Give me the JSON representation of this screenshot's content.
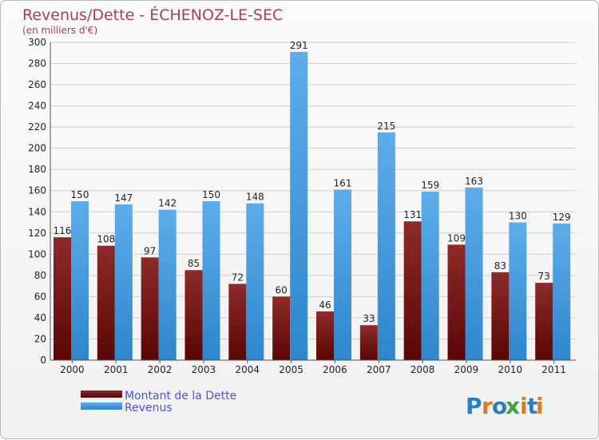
{
  "chart_data": {
    "type": "bar",
    "title": "Revenus/Dette - ÉCHENOZ-LE-SEC",
    "subtitle": "(en milliers d'€)",
    "categories": [
      "2000",
      "2001",
      "2002",
      "2003",
      "2004",
      "2005",
      "2006",
      "2007",
      "2008",
      "2009",
      "2010",
      "2011"
    ],
    "series": [
      {
        "name": "Montant de la Dette",
        "color": "#7a1010",
        "values": [
          116,
          108,
          97,
          85,
          72,
          60,
          46,
          33,
          131,
          109,
          83,
          73
        ]
      },
      {
        "name": "Revenus",
        "color": "#4fa0df",
        "values": [
          150,
          147,
          142,
          150,
          148,
          291,
          161,
          215,
          159,
          163,
          130,
          129
        ]
      }
    ],
    "ylim": [
      0,
      300
    ],
    "yticks": [
      0,
      20,
      40,
      60,
      80,
      100,
      120,
      140,
      160,
      180,
      200,
      220,
      240,
      260,
      280,
      300
    ],
    "grid": true,
    "legend_position": "bottom-left"
  },
  "logo": {
    "letters": [
      "P",
      "r",
      "o",
      "x",
      "i",
      "t",
      "i"
    ],
    "colors": [
      "#2a7fc4",
      "#e07b1a",
      "#2a7fc4",
      "#3aa43a",
      "#e07b1a",
      "#2a7fc4",
      "#e07b1a"
    ]
  }
}
